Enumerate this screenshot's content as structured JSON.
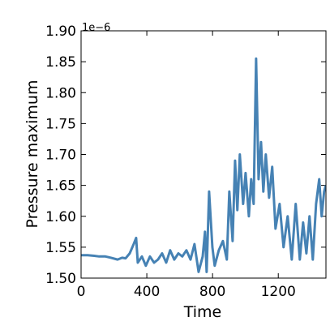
{
  "chart_data": {
    "type": "line",
    "xlabel": "Time",
    "ylabel": "Pressure maximum",
    "offset_label": "1e−6",
    "x": [
      0,
      40,
      80,
      110,
      148,
      180,
      222,
      250,
      271,
      296,
      320,
      335,
      345,
      370,
      394,
      419,
      444,
      468,
      493,
      518,
      542,
      567,
      592,
      616,
      641,
      666,
      690,
      715,
      740,
      754,
      764,
      779,
      799,
      813,
      838,
      863,
      887,
      902,
      922,
      937,
      951,
      966,
      986,
      1001,
      1021,
      1035,
      1050,
      1065,
      1080,
      1095,
      1109,
      1124,
      1144,
      1163,
      1183,
      1208,
      1232,
      1257,
      1282,
      1306,
      1331,
      1351,
      1371,
      1390,
      1410,
      1430,
      1449,
      1464,
      1479,
      1489
    ],
    "series": [
      {
        "name": "Pressure maximum",
        "color": "#4682b4",
        "values": [
          1.537,
          1.537,
          1.536,
          1.535,
          1.535,
          1.533,
          1.53,
          1.533,
          1.532,
          1.54,
          1.555,
          1.565,
          1.525,
          1.535,
          1.52,
          1.535,
          1.525,
          1.53,
          1.54,
          1.525,
          1.545,
          1.53,
          1.54,
          1.535,
          1.545,
          1.53,
          1.555,
          1.51,
          1.535,
          1.575,
          1.51,
          1.64,
          1.55,
          1.52,
          1.545,
          1.56,
          1.53,
          1.64,
          1.56,
          1.69,
          1.61,
          1.7,
          1.62,
          1.67,
          1.6,
          1.66,
          1.62,
          1.855,
          1.66,
          1.72,
          1.64,
          1.7,
          1.63,
          1.68,
          1.58,
          1.62,
          1.55,
          1.6,
          1.53,
          1.62,
          1.53,
          1.59,
          1.54,
          1.6,
          1.53,
          1.62,
          1.66,
          1.6,
          1.64,
          1.65
        ]
      }
    ],
    "xlim": [
      0,
      1490
    ],
    "xticks": [
      0,
      400,
      800,
      1200
    ],
    "ylim": [
      1.5,
      1.9
    ],
    "yticks": [
      {
        "value": 1.5,
        "label": "1.50"
      },
      {
        "value": 1.55,
        "label": "1.55"
      },
      {
        "value": 1.6,
        "label": "1.60"
      },
      {
        "value": 1.65,
        "label": "1.65"
      },
      {
        "value": 1.7,
        "label": "1.70"
      },
      {
        "value": 1.75,
        "label": "1.75"
      },
      {
        "value": 1.8,
        "label": "1.80"
      },
      {
        "value": 1.85,
        "label": "1.85"
      },
      {
        "value": 1.9,
        "label": "1.90"
      }
    ]
  }
}
